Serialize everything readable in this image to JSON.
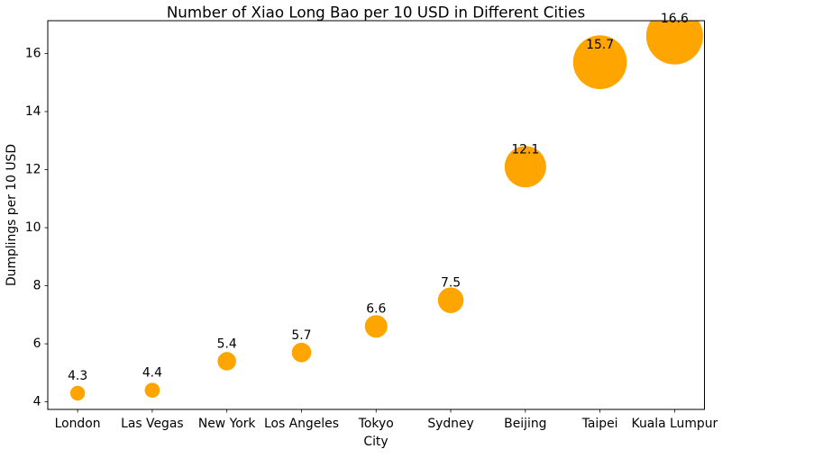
{
  "chart_data": {
    "type": "bubble",
    "title": "Number of Xiao Long Bao per 10 USD in Different Cities",
    "xlabel": "City",
    "ylabel": "Dumplings per 10 USD",
    "categories": [
      "London",
      "Las Vegas",
      "New York",
      "Los Angeles",
      "Tokyo",
      "Sydney",
      "Beijing",
      "Taipei",
      "Kuala Lumpur"
    ],
    "values": [
      4.3,
      4.4,
      5.4,
      5.7,
      6.6,
      7.5,
      12.1,
      15.7,
      16.6
    ],
    "data_labels": [
      "4.3",
      "4.4",
      "5.4",
      "5.7",
      "6.6",
      "7.5",
      "12.1",
      "15.7",
      "16.6"
    ],
    "yticks": [
      4,
      6,
      8,
      10,
      12,
      14,
      16
    ],
    "ylim": [
      3.74,
      17.13
    ],
    "xlim": [
      -0.4,
      8.4
    ],
    "grid": false,
    "legend": false,
    "marker_color": "#FFA500",
    "size_encoding": "bubble radius proportional to value",
    "axis_color": "#000000",
    "text_color": "#000000",
    "background_color": "#FFFFFF"
  }
}
